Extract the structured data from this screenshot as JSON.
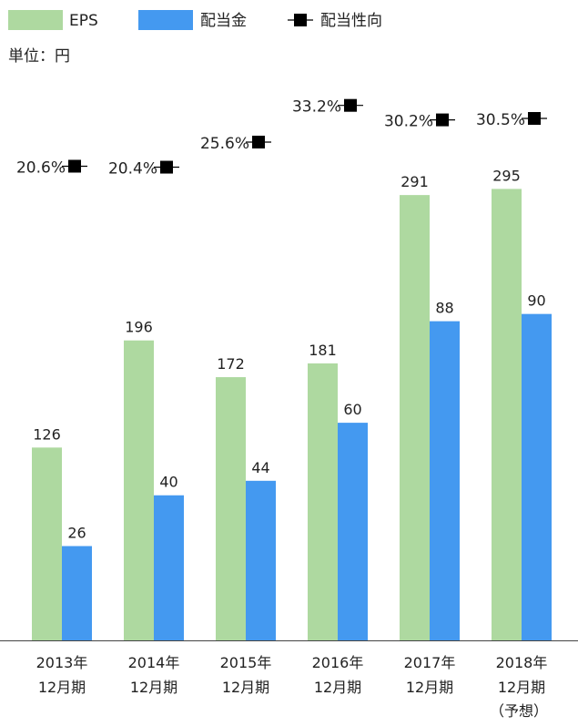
{
  "chart_data": {
    "type": "bar",
    "unit_label": "単位：円",
    "legend": [
      {
        "key": "eps",
        "label": "EPS",
        "color": "#aed9a0",
        "marker": "box"
      },
      {
        "key": "dividend",
        "label": "配当金",
        "color": "#4499f0",
        "marker": "box"
      },
      {
        "key": "payout",
        "label": "配当性向",
        "color": "#000000",
        "marker": "line-square"
      }
    ],
    "categories": [
      {
        "year": "2013",
        "year_suffix": "年",
        "period": "12月期",
        "note": ""
      },
      {
        "year": "2014",
        "year_suffix": "年",
        "period": "12月期",
        "note": ""
      },
      {
        "year": "2015",
        "year_suffix": "年",
        "period": "12月期",
        "note": ""
      },
      {
        "year": "2016",
        "year_suffix": "年",
        "period": "12月期",
        "note": ""
      },
      {
        "year": "2017",
        "year_suffix": "年",
        "period": "12月期",
        "note": ""
      },
      {
        "year": "2018",
        "year_suffix": "年",
        "period": "12月期",
        "note": "（予想）"
      }
    ],
    "series": [
      {
        "name": "EPS",
        "values": [
          126,
          196,
          172,
          181,
          291,
          295
        ],
        "color": "#aed9a0"
      },
      {
        "name": "配当金",
        "values": [
          26,
          40,
          44,
          60,
          88,
          90
        ],
        "color": "#4499f0"
      }
    ],
    "payout_ratio": {
      "name": "配当性向",
      "values": [
        20.6,
        20.4,
        25.6,
        33.2,
        30.2,
        30.5
      ],
      "labels": [
        "20.6%",
        "20.4%",
        "25.6%",
        "33.2%",
        "30.2%",
        "30.5%"
      ],
      "color": "#000000"
    },
    "ylim_eps": [
      0,
      308
    ]
  }
}
